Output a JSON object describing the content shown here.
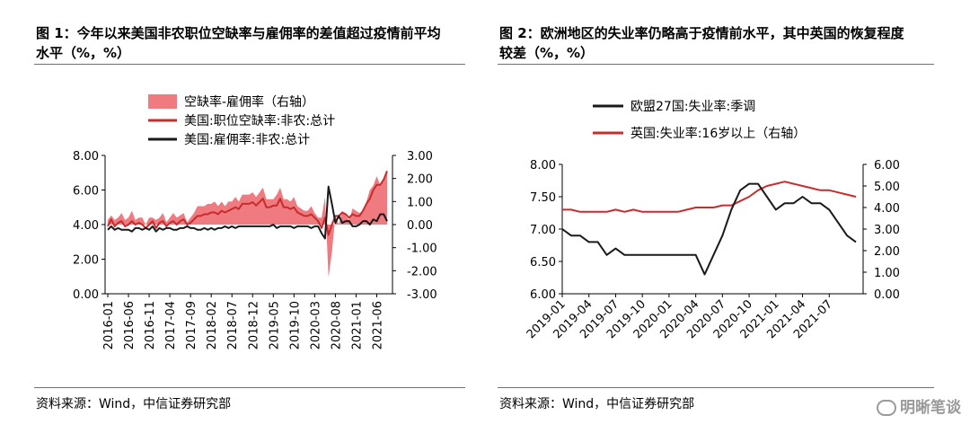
{
  "left": {
    "title_line1": "图 1：今年以来美国非农职位空缺率与雇佣率的差值超过疫情前平均",
    "title_line2": "水平（%，%）",
    "source": "资料来源：Wind，中信证券研究部"
  },
  "right": {
    "title_line1": "图 2：欧洲地区的失业率仍略高于疫情前水平，其中英国的恢复程度",
    "title_line2": "较差（%，%）",
    "source": "资料来源：Wind，中信证券研究部"
  },
  "watermark": "明晰笔谈",
  "colors": {
    "red": "#c62d2d",
    "pink": "#ef7a80",
    "black": "#1a1a1a",
    "rule": "#c0504d"
  },
  "chart_data": [
    {
      "type": "line",
      "legend": [
        "空缺率-雇佣率（右轴）",
        "美国:职位空缺率:非农:总计",
        "美国:雇佣率:非农:总计"
      ],
      "x_tick_labels": [
        "2016-01",
        "2016-06",
        "2016-11",
        "2017-04",
        "2017-09",
        "2018-02",
        "2018-07",
        "2018-12",
        "2019-05",
        "2019-10",
        "2020-03",
        "2020-08",
        "2021-01",
        "2021-06"
      ],
      "y_left": {
        "ylim": [
          0,
          8
        ],
        "ticks": [
          "0.00",
          "2.00",
          "4.00",
          "6.00",
          "8.00"
        ]
      },
      "y_right": {
        "ylim": [
          -3,
          3
        ],
        "ticks": [
          "-3.00",
          "-2.00",
          "-1.00",
          "0.00",
          "1.00",
          "2.00",
          "3.00"
        ]
      },
      "x_start": "2016-01",
      "series": [
        {
          "name": "美国:职位空缺率:非农:总计",
          "axis": "left",
          "values": [
            3.9,
            4.3,
            3.9,
            4.1,
            4.2,
            3.9,
            4.0,
            4.2,
            4.0,
            4.1,
            4.0,
            3.8,
            4.0,
            4.2,
            3.8,
            4.1,
            4.2,
            3.9,
            4.1,
            4.2,
            4.0,
            4.2,
            4.3,
            4.0,
            4.1,
            4.3,
            4.5,
            4.5,
            4.6,
            4.6,
            4.7,
            4.7,
            4.6,
            4.8,
            4.7,
            4.8,
            4.9,
            5.0,
            4.9,
            5.2,
            5.2,
            5.2,
            5.3,
            5.1,
            5.3,
            5.5,
            5.0,
            5.0,
            5.1,
            5.1,
            5.5,
            5.0,
            5.0,
            4.9,
            5.0,
            4.7,
            4.6,
            4.5,
            4.5,
            4.6,
            4.4,
            4.2,
            3.8,
            4.4,
            3.4,
            4.0,
            4.5,
            4.5,
            4.7,
            4.6,
            4.4,
            4.6,
            4.5,
            4.5,
            4.8,
            5.2,
            5.5,
            6.0,
            6.3,
            6.3,
            6.6,
            7.1
          ]
        },
        {
          "name": "美国:雇佣率:非农:总计",
          "axis": "left",
          "values": [
            3.7,
            3.9,
            3.7,
            3.8,
            3.7,
            3.7,
            3.7,
            3.6,
            3.8,
            3.8,
            3.7,
            3.8,
            3.7,
            3.9,
            3.6,
            3.8,
            3.7,
            3.8,
            3.8,
            3.7,
            3.7,
            3.8,
            3.8,
            3.9,
            3.8,
            3.8,
            3.7,
            3.7,
            3.8,
            3.7,
            3.8,
            3.7,
            3.8,
            3.8,
            3.9,
            3.8,
            3.9,
            3.8,
            3.9,
            3.9,
            3.9,
            3.9,
            3.9,
            3.9,
            3.9,
            3.9,
            3.9,
            3.9,
            4.0,
            3.8,
            3.9,
            3.9,
            3.9,
            3.9,
            3.8,
            3.9,
            3.9,
            3.9,
            3.9,
            3.8,
            3.9,
            3.9,
            3.5,
            3.2,
            6.2,
            5.2,
            4.1,
            4.5,
            4.1,
            4.2,
            4.2,
            3.9,
            3.9,
            4.0,
            4.2,
            4.2,
            4.0,
            4.3,
            4.2,
            4.6,
            4.6,
            4.2
          ]
        },
        {
          "name": "空缺率-雇佣率（右轴）",
          "axis": "right",
          "values": [
            0.2,
            0.4,
            0.2,
            0.3,
            0.5,
            0.2,
            0.3,
            0.6,
            0.2,
            0.3,
            0.3,
            0.0,
            0.3,
            0.3,
            0.2,
            0.3,
            0.5,
            0.1,
            0.3,
            0.5,
            0.3,
            0.4,
            0.5,
            0.1,
            0.3,
            0.5,
            0.8,
            0.8,
            0.8,
            0.9,
            0.9,
            1.0,
            0.8,
            1.0,
            0.8,
            1.0,
            1.0,
            1.2,
            1.0,
            1.3,
            1.3,
            1.3,
            1.4,
            1.2,
            1.4,
            1.6,
            1.1,
            1.1,
            1.1,
            1.3,
            1.6,
            1.1,
            1.1,
            1.0,
            1.2,
            0.8,
            0.7,
            0.6,
            0.6,
            0.8,
            0.5,
            0.3,
            0.3,
            1.2,
            -2.3,
            -1.2,
            0.4,
            0.0,
            0.6,
            0.4,
            0.2,
            0.7,
            0.6,
            0.5,
            0.6,
            1.0,
            1.5,
            1.7,
            2.1,
            1.7,
            2.0,
            2.3
          ]
        }
      ]
    },
    {
      "type": "line",
      "legend": [
        "欧盟27国:失业率:季调",
        "英国:失业率:16岁以上（右轴）"
      ],
      "x_tick_labels": [
        "2019-01",
        "2019-04",
        "2019-07",
        "2019-10",
        "2020-01",
        "2020-04",
        "2020-07",
        "2020-10",
        "2021-01",
        "2021-04",
        "2021-07"
      ],
      "y_left": {
        "ylim": [
          6.0,
          8.0
        ],
        "ticks": [
          "6.00",
          "6.50",
          "7.00",
          "7.50",
          "8.00"
        ]
      },
      "y_right": {
        "ylim": [
          0,
          6
        ],
        "ticks": [
          "0.00",
          "1.00",
          "2.00",
          "3.00",
          "4.00",
          "5.00",
          "6.00"
        ]
      },
      "x_start": "2019-01",
      "series": [
        {
          "name": "欧盟27国:失业率:季调",
          "axis": "left",
          "values": [
            7.0,
            6.9,
            6.9,
            6.8,
            6.8,
            6.6,
            6.7,
            6.6,
            6.6,
            6.6,
            6.6,
            6.6,
            6.6,
            6.6,
            6.6,
            6.6,
            6.3,
            6.6,
            6.9,
            7.3,
            7.6,
            7.7,
            7.7,
            7.5,
            7.3,
            7.4,
            7.4,
            7.5,
            7.4,
            7.4,
            7.3,
            7.1,
            6.9,
            6.8
          ]
        },
        {
          "name": "英国:失业率:16岁以上（右轴）",
          "axis": "right",
          "values": [
            3.9,
            3.9,
            3.8,
            3.8,
            3.8,
            3.8,
            3.9,
            3.8,
            3.9,
            3.8,
            3.8,
            3.8,
            3.8,
            3.8,
            3.9,
            4.0,
            4.0,
            4.0,
            4.1,
            4.1,
            4.3,
            4.5,
            4.8,
            5.0,
            5.1,
            5.2,
            5.1,
            5.0,
            4.9,
            4.8,
            4.8,
            4.7,
            4.6,
            4.5
          ]
        }
      ]
    }
  ]
}
